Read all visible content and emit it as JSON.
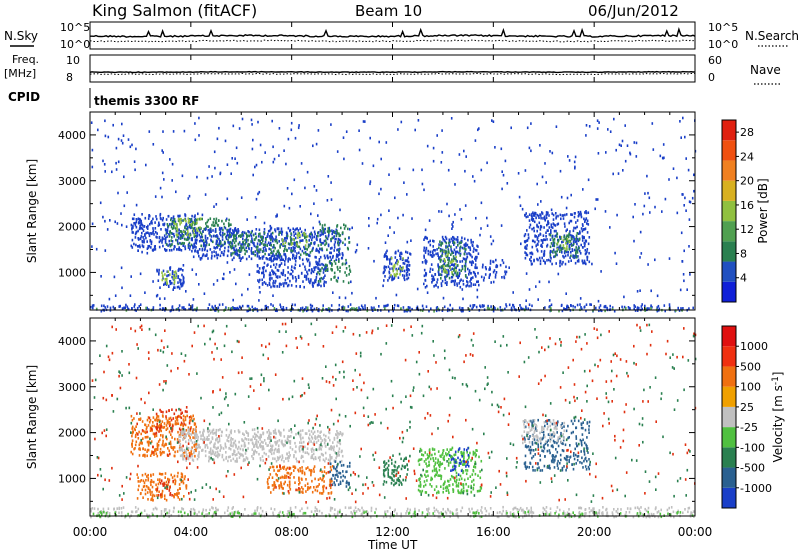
{
  "header": {
    "station": "King Salmon (fitACF)",
    "beam": "Beam 10",
    "date": "06/Jun/2012"
  },
  "top_panels": {
    "nsky_label": "N.Sky",
    "nsearch_label": "N.Search",
    "noise_tick_hi": "10^5",
    "noise_tick_lo": "10^0",
    "freq_label": "Freq.",
    "freq_unit": "[MHz]",
    "freq_tick_hi": "10",
    "freq_tick_lo": "8",
    "nave_label": "Nave",
    "nave_tick_hi": "60",
    "nave_tick_lo": "0",
    "cpid_label": "CPID",
    "cpid_value": "themis 3300 RF"
  },
  "chart_data": [
    {
      "type": "heatmap",
      "quantity": "Power",
      "ylabel": "Slant Range [km]",
      "ylim": [
        180,
        4500
      ],
      "xlim_hours": [
        0,
        24
      ],
      "yticks": [
        1000,
        2000,
        3000,
        4000
      ],
      "colorbar": {
        "label": "Power [dB]",
        "ticks": [
          "4",
          "8",
          "12",
          "16",
          "20",
          "24",
          "28"
        ],
        "range": [
          0,
          30
        ],
        "colors": [
          "#1020d8",
          "#2050c0",
          "#2a8050",
          "#50a050",
          "#90c040",
          "#d8b020",
          "#f08020",
          "#f05010",
          "#e02010"
        ]
      },
      "regions": [
        {
          "t0": 1.6,
          "t1": 4.2,
          "r0": 1500,
          "r1": 2300,
          "c": "#1a3fc8",
          "d": 0.65
        },
        {
          "t0": 3.0,
          "t1": 5.6,
          "r0": 1600,
          "r1": 2200,
          "c": "#2a8050",
          "d": 0.5
        },
        {
          "t0": 3.3,
          "t1": 4.4,
          "r0": 1800,
          "r1": 2200,
          "c": "#90c040",
          "d": 0.45
        },
        {
          "t0": 2.6,
          "t1": 3.7,
          "r0": 650,
          "r1": 1150,
          "c": "#1a3fc8",
          "d": 0.6
        },
        {
          "t0": 2.8,
          "t1": 3.4,
          "r0": 750,
          "r1": 1050,
          "c": "#90c040",
          "d": 0.6
        },
        {
          "t0": 4.0,
          "t1": 10.0,
          "r0": 1300,
          "r1": 2000,
          "c": "#1a3fc8",
          "d": 0.65
        },
        {
          "t0": 5.5,
          "t1": 8.8,
          "r0": 1400,
          "r1": 1900,
          "c": "#2a8050",
          "d": 0.45
        },
        {
          "t0": 7.6,
          "t1": 8.6,
          "r0": 1600,
          "r1": 1900,
          "c": "#90c040",
          "d": 0.4
        },
        {
          "t0": 9.0,
          "t1": 10.3,
          "r0": 1500,
          "r1": 2100,
          "c": "#2a8050",
          "d": 0.35
        },
        {
          "t0": 6.6,
          "t1": 9.4,
          "r0": 700,
          "r1": 1400,
          "c": "#1a3fc8",
          "d": 0.55
        },
        {
          "t0": 9.0,
          "t1": 10.3,
          "r0": 800,
          "r1": 1300,
          "c": "#2a8050",
          "d": 0.4
        },
        {
          "t0": 11.6,
          "t1": 12.7,
          "r0": 850,
          "r1": 1500,
          "c": "#1a3fc8",
          "d": 0.7
        },
        {
          "t0": 11.9,
          "t1": 12.4,
          "r0": 950,
          "r1": 1350,
          "c": "#90c040",
          "d": 0.6
        },
        {
          "t0": 13.2,
          "t1": 15.4,
          "r0": 700,
          "r1": 1800,
          "c": "#1a3fc8",
          "d": 0.6
        },
        {
          "t0": 13.8,
          "t1": 14.9,
          "r0": 900,
          "r1": 1700,
          "c": "#2a8050",
          "d": 0.45
        },
        {
          "t0": 14.0,
          "t1": 14.5,
          "r0": 1000,
          "r1": 1500,
          "c": "#90c040",
          "d": 0.4
        },
        {
          "t0": 15.5,
          "t1": 16.5,
          "r0": 800,
          "r1": 1300,
          "c": "#1a3fc8",
          "d": 0.4
        },
        {
          "t0": 17.2,
          "t1": 19.8,
          "r0": 1200,
          "r1": 2350,
          "c": "#1a3fc8",
          "d": 0.6
        },
        {
          "t0": 18.2,
          "t1": 19.4,
          "r0": 1350,
          "r1": 1900,
          "c": "#2a8050",
          "d": 0.5
        },
        {
          "t0": 18.5,
          "t1": 19.0,
          "r0": 1500,
          "r1": 1800,
          "c": "#90c040",
          "d": 0.4
        },
        {
          "t0": 0.0,
          "t1": 24.0,
          "r0": 180,
          "r1": 330,
          "c": "#1a3fc8",
          "d": 0.55
        },
        {
          "t0": 0.0,
          "t1": 24.0,
          "r0": 180,
          "r1": 260,
          "c": "#50a050",
          "d": 0.2
        },
        {
          "t0": 0.0,
          "t1": 24.0,
          "r0": 400,
          "r1": 4400,
          "c": "#1a3fc8",
          "d": 0.03
        }
      ]
    },
    {
      "type": "heatmap",
      "quantity": "Velocity",
      "ylabel": "Slant Range [km]",
      "xlabel": "Time UT",
      "xticks": [
        "00:00",
        "04:00",
        "08:00",
        "12:00",
        "16:00",
        "20:00",
        "00:00"
      ],
      "ylim": [
        180,
        4500
      ],
      "xlim_hours": [
        0,
        24
      ],
      "yticks": [
        1000,
        2000,
        3000,
        4000
      ],
      "colorbar": {
        "label": "Velocity [m s^-1]",
        "ticks": [
          "1000",
          "500",
          "100",
          "25",
          "-25",
          "-100",
          "-500",
          "-1000"
        ],
        "colors": [
          "#1a3fc8",
          "#2a6090",
          "#2a8050",
          "#50c040",
          "#c0c0c0",
          "#f0a000",
          "#f07010",
          "#f03010",
          "#e01010"
        ]
      },
      "regions": [
        {
          "t0": 1.6,
          "t1": 4.2,
          "r0": 1500,
          "r1": 2400,
          "c": "#f07010",
          "d": 0.6
        },
        {
          "t0": 2.6,
          "t1": 4.0,
          "r0": 2000,
          "r1": 2600,
          "c": "#e03010",
          "d": 0.25
        },
        {
          "t0": 3.5,
          "t1": 10.0,
          "r0": 1400,
          "r1": 2100,
          "c": "#c0c0c0",
          "d": 0.7
        },
        {
          "t0": 1.8,
          "t1": 3.8,
          "r0": 550,
          "r1": 1150,
          "c": "#f07010",
          "d": 0.55
        },
        {
          "t0": 2.6,
          "t1": 3.4,
          "r0": 650,
          "r1": 1050,
          "c": "#e03010",
          "d": 0.3
        },
        {
          "t0": 7.0,
          "t1": 9.6,
          "r0": 700,
          "r1": 1300,
          "c": "#f07010",
          "d": 0.55
        },
        {
          "t0": 9.4,
          "t1": 10.3,
          "r0": 850,
          "r1": 1400,
          "c": "#2a6090",
          "d": 0.5
        },
        {
          "t0": 11.6,
          "t1": 12.6,
          "r0": 850,
          "r1": 1500,
          "c": "#2a8050",
          "d": 0.6
        },
        {
          "t0": 13.0,
          "t1": 15.5,
          "r0": 700,
          "r1": 1700,
          "c": "#50c040",
          "d": 0.55
        },
        {
          "t0": 14.2,
          "t1": 15.0,
          "r0": 1100,
          "r1": 1700,
          "c": "#1a3fc8",
          "d": 0.35
        },
        {
          "t0": 17.2,
          "t1": 19.8,
          "r0": 1200,
          "r1": 2300,
          "c": "#2a6090",
          "d": 0.45
        },
        {
          "t0": 17.0,
          "t1": 18.8,
          "r0": 1800,
          "r1": 2300,
          "c": "#c0c0c0",
          "d": 0.45
        },
        {
          "t0": 0.0,
          "t1": 24.0,
          "r0": 180,
          "r1": 400,
          "c": "#c0c0c0",
          "d": 0.45
        },
        {
          "t0": 0.0,
          "t1": 24.0,
          "r0": 180,
          "r1": 300,
          "c": "#50c040",
          "d": 0.25
        },
        {
          "t0": 0.0,
          "t1": 24.0,
          "r0": 500,
          "r1": 4400,
          "c": "#e03010",
          "d": 0.02
        },
        {
          "t0": 0.0,
          "t1": 24.0,
          "r0": 500,
          "r1": 4400,
          "c": "#2a8050",
          "d": 0.02
        }
      ]
    }
  ]
}
